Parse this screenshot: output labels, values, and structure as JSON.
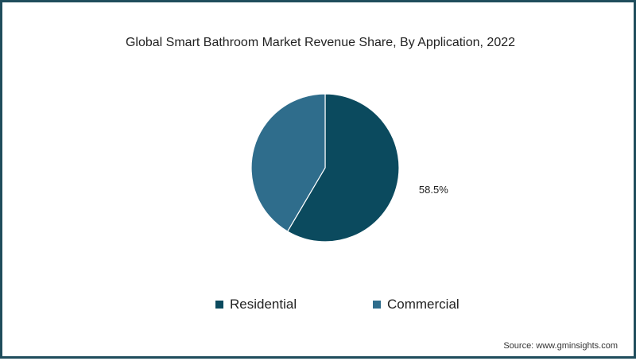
{
  "chart_data": {
    "type": "pie",
    "title": "Global Smart Bathroom Market Revenue Share, By Application, 2022",
    "categories": [
      "Residential",
      "Commercial"
    ],
    "values": [
      58.5,
      41.5
    ],
    "data_labels": [
      "58.5%",
      ""
    ],
    "colors": [
      "#0b4a5e",
      "#2f6d8c"
    ],
    "legend_position": "bottom",
    "source": "Source: www.gminsights.com"
  }
}
